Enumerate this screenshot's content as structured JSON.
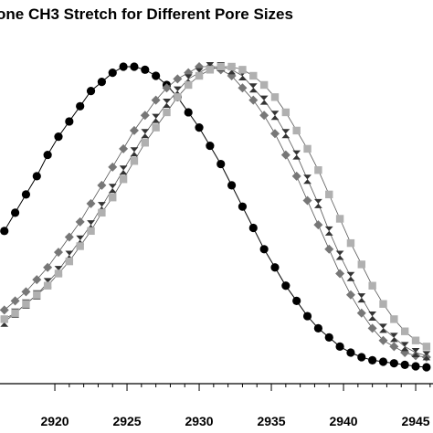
{
  "chart_data": {
    "type": "scatter",
    "title": "one CH3 Stretch  for Different Pore Sizes",
    "xlabel": "",
    "ylabel": "",
    "xlim": [
      2916.2,
      2946.2
    ],
    "ylim": [
      0.0,
      1.0
    ],
    "x_ticks": [
      2920,
      2925,
      2930,
      2935,
      2940,
      2945
    ],
    "grid": false,
    "series": [
      {
        "marker": "circle",
        "color": "#000000",
        "x": [
          2916.5,
          2917.25,
          2918,
          2918.75,
          2919.5,
          2920.25,
          2921,
          2921.75,
          2922.5,
          2923.25,
          2924,
          2924.75,
          2925.5,
          2926.25,
          2927,
          2927.75,
          2928.5,
          2929.25,
          2930,
          2930.75,
          2931.5,
          2932.25,
          2933,
          2933.75,
          2934.5,
          2935.25,
          2936,
          2936.75,
          2937.5,
          2938.25,
          2939,
          2939.75,
          2940.5,
          2941.25,
          2942,
          2942.75,
          2943.5,
          2944.25,
          2945,
          2945.75
        ],
        "y": [
          0.46,
          0.52,
          0.58,
          0.64,
          0.71,
          0.77,
          0.82,
          0.87,
          0.92,
          0.95,
          0.98,
          1.0,
          1.0,
          0.99,
          0.97,
          0.94,
          0.9,
          0.85,
          0.8,
          0.74,
          0.68,
          0.61,
          0.54,
          0.47,
          0.4,
          0.34,
          0.28,
          0.23,
          0.18,
          0.14,
          0.11,
          0.08,
          0.06,
          0.045,
          0.035,
          0.03,
          0.025,
          0.02,
          0.015,
          0.012
        ]
      },
      {
        "marker": "diamond",
        "color": "#777777",
        "x": [
          2916.5,
          2917.25,
          2918,
          2918.75,
          2919.5,
          2920.25,
          2921,
          2921.75,
          2922.5,
          2923.25,
          2924,
          2924.75,
          2925.5,
          2926.25,
          2927,
          2927.75,
          2928.5,
          2929.25,
          2930,
          2930.75,
          2931.5,
          2932.25,
          2933,
          2933.75,
          2934.5,
          2935.25,
          2936,
          2936.75,
          2937.5,
          2938.25,
          2939,
          2939.75,
          2940.5,
          2941.25,
          2942,
          2942.75,
          2943.5,
          2944.25,
          2945,
          2945.75
        ],
        "y": [
          0.2,
          0.23,
          0.26,
          0.3,
          0.34,
          0.39,
          0.44,
          0.49,
          0.55,
          0.61,
          0.67,
          0.73,
          0.79,
          0.84,
          0.89,
          0.93,
          0.96,
          0.98,
          1.0,
          1.0,
          0.99,
          0.97,
          0.93,
          0.89,
          0.84,
          0.78,
          0.71,
          0.64,
          0.56,
          0.48,
          0.4,
          0.32,
          0.25,
          0.19,
          0.14,
          0.1,
          0.08,
          0.06,
          0.05,
          0.045
        ]
      },
      {
        "marker": "hourglass",
        "color": "#333333",
        "x": [
          2916.5,
          2917.25,
          2918,
          2918.75,
          2919.5,
          2920.25,
          2921,
          2921.75,
          2922.5,
          2923.25,
          2924,
          2924.75,
          2925.5,
          2926.25,
          2927,
          2927.75,
          2928.5,
          2929.25,
          2930,
          2930.75,
          2931.5,
          2932.25,
          2933,
          2933.75,
          2934.5,
          2935.25,
          2936,
          2936.75,
          2937.5,
          2938.25,
          2939,
          2939.75,
          2940.5,
          2941.25,
          2942,
          2942.75,
          2943.5,
          2944.25,
          2945,
          2945.75
        ],
        "y": [
          0.16,
          0.19,
          0.22,
          0.25,
          0.29,
          0.33,
          0.38,
          0.43,
          0.48,
          0.54,
          0.6,
          0.66,
          0.72,
          0.78,
          0.83,
          0.88,
          0.92,
          0.96,
          0.98,
          1.0,
          1.0,
          0.99,
          0.97,
          0.93,
          0.89,
          0.84,
          0.78,
          0.71,
          0.63,
          0.55,
          0.46,
          0.38,
          0.31,
          0.24,
          0.18,
          0.14,
          0.11,
          0.08,
          0.06,
          0.05
        ]
      },
      {
        "marker": "square",
        "color": "#b0b0b0",
        "x": [
          2916.5,
          2917.25,
          2918,
          2918.75,
          2919.5,
          2920.25,
          2921,
          2921.75,
          2922.5,
          2923.25,
          2924,
          2924.75,
          2925.5,
          2926.25,
          2927,
          2927.75,
          2928.5,
          2929.25,
          2930,
          2930.75,
          2931.5,
          2932.25,
          2933,
          2933.75,
          2934.5,
          2935.25,
          2936,
          2936.75,
          2937.5,
          2938.25,
          2939,
          2939.75,
          2940.5,
          2941.25,
          2942,
          2942.75,
          2943.5,
          2944.25,
          2945,
          2945.75
        ],
        "y": [
          0.17,
          0.19,
          0.22,
          0.25,
          0.28,
          0.32,
          0.36,
          0.41,
          0.46,
          0.52,
          0.57,
          0.63,
          0.69,
          0.75,
          0.8,
          0.85,
          0.9,
          0.94,
          0.97,
          0.99,
          1.0,
          1.0,
          0.99,
          0.97,
          0.94,
          0.9,
          0.85,
          0.79,
          0.73,
          0.66,
          0.58,
          0.5,
          0.42,
          0.35,
          0.28,
          0.22,
          0.17,
          0.13,
          0.1,
          0.08
        ]
      }
    ]
  }
}
